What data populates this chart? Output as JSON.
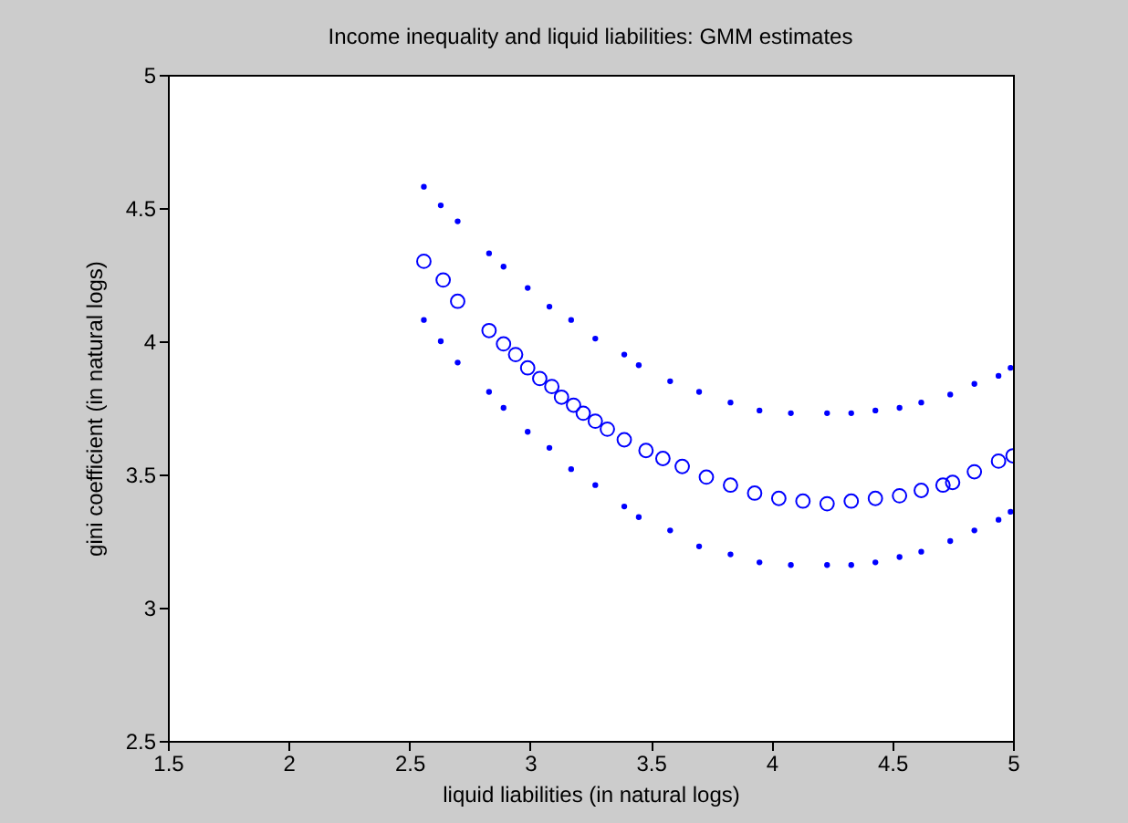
{
  "chart_data": {
    "type": "scatter",
    "title": "Income inequality and liquid liabilities: GMM estimates",
    "xlabel": "liquid liabilities (in natural logs)",
    "ylabel": "gini coefficient (in natural logs)",
    "xlim": [
      1.5,
      5
    ],
    "ylim": [
      2.5,
      5
    ],
    "xticks": [
      1.5,
      2,
      2.5,
      3,
      3.5,
      4,
      4.5,
      5
    ],
    "yticks": [
      2.5,
      3,
      3.5,
      4,
      4.5,
      5
    ],
    "series": [
      {
        "color": "#0000ff",
        "marker": "dot",
        "x": [
          2.56,
          2.63,
          2.7,
          2.83,
          2.89,
          2.99,
          3.08,
          3.17,
          3.27,
          3.39,
          3.45,
          3.58,
          3.7,
          3.83,
          3.95,
          4.08,
          4.23,
          4.33,
          4.43,
          4.53,
          4.62,
          4.74,
          4.84,
          4.94,
          4.99
        ],
        "values": [
          4.58,
          4.51,
          4.45,
          4.33,
          4.28,
          4.2,
          4.13,
          4.08,
          4.01,
          3.95,
          3.91,
          3.85,
          3.81,
          3.77,
          3.74,
          3.73,
          3.73,
          3.73,
          3.74,
          3.75,
          3.77,
          3.8,
          3.84,
          3.87,
          3.9
        ]
      },
      {
        "color": "#0000ff",
        "marker": "circle",
        "x": [
          2.56,
          2.64,
          2.7,
          2.83,
          2.89,
          2.94,
          2.99,
          3.04,
          3.09,
          3.13,
          3.18,
          3.22,
          3.27,
          3.32,
          3.39,
          3.48,
          3.55,
          3.63,
          3.73,
          3.83,
          3.93,
          4.03,
          4.13,
          4.23,
          4.33,
          4.43,
          4.53,
          4.62,
          4.71,
          4.75,
          4.84,
          4.94,
          5.0
        ],
        "values": [
          4.3,
          4.23,
          4.15,
          4.04,
          3.99,
          3.95,
          3.9,
          3.86,
          3.83,
          3.79,
          3.76,
          3.73,
          3.7,
          3.67,
          3.63,
          3.59,
          3.56,
          3.53,
          3.49,
          3.46,
          3.43,
          3.41,
          3.4,
          3.39,
          3.4,
          3.41,
          3.42,
          3.44,
          3.46,
          3.47,
          3.51,
          3.55,
          3.57
        ]
      },
      {
        "color": "#0000ff",
        "marker": "dot",
        "x": [
          2.56,
          2.63,
          2.7,
          2.83,
          2.89,
          2.99,
          3.08,
          3.17,
          3.27,
          3.39,
          3.45,
          3.58,
          3.7,
          3.83,
          3.95,
          4.08,
          4.23,
          4.33,
          4.43,
          4.53,
          4.62,
          4.74,
          4.84,
          4.94,
          4.99
        ],
        "values": [
          4.08,
          4.0,
          3.92,
          3.81,
          3.75,
          3.66,
          3.6,
          3.52,
          3.46,
          3.38,
          3.34,
          3.29,
          3.23,
          3.2,
          3.17,
          3.16,
          3.16,
          3.16,
          3.17,
          3.19,
          3.21,
          3.25,
          3.29,
          3.33,
          3.36
        ]
      }
    ]
  }
}
